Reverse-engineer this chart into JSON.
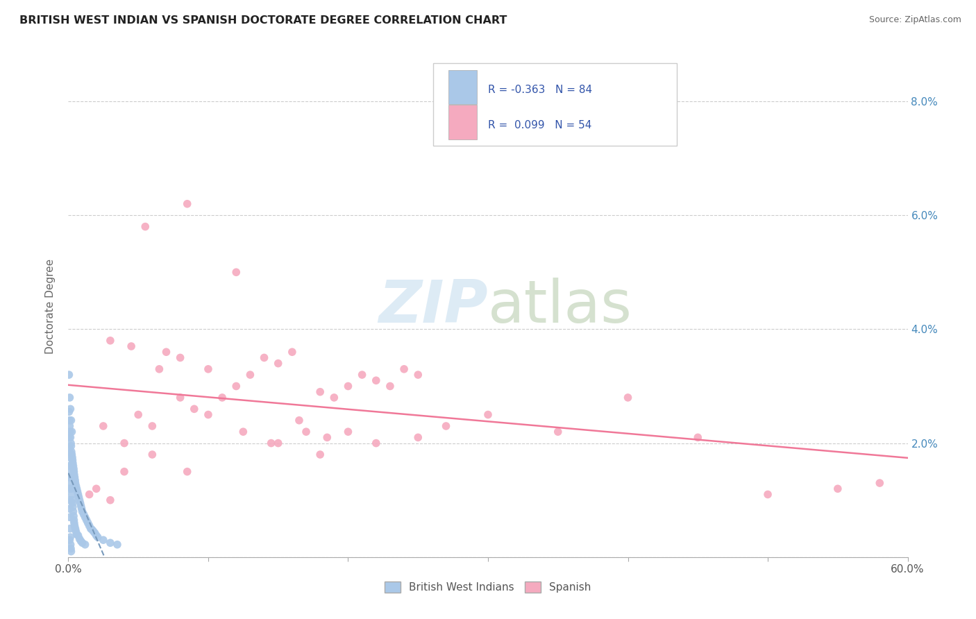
{
  "title": "BRITISH WEST INDIAN VS SPANISH DOCTORATE DEGREE CORRELATION CHART",
  "source": "Source: ZipAtlas.com",
  "ylabel": "Doctorate Degree",
  "xlim": [
    0.0,
    60.0
  ],
  "ylim": [
    0.0,
    8.8
  ],
  "yticks": [
    0.0,
    2.0,
    4.0,
    6.0,
    8.0
  ],
  "ytick_labels": [
    "",
    "2.0%",
    "4.0%",
    "6.0%",
    "8.0%"
  ],
  "legend_blue_r": "R = -0.363",
  "legend_blue_n": "N = 84",
  "legend_pink_r": "R =  0.099",
  "legend_pink_n": "N = 54",
  "blue_color": "#aac8e8",
  "pink_color": "#f5aabf",
  "blue_line_color": "#7799bb",
  "pink_line_color": "#f07898",
  "legend_text_color": "#3355aa",
  "ytick_color": "#4488bb",
  "watermark_color": "#d8e8f4",
  "blue_dots": [
    [
      0.05,
      2.55
    ],
    [
      0.08,
      2.4
    ],
    [
      0.1,
      2.3
    ],
    [
      0.12,
      2.2
    ],
    [
      0.15,
      2.1
    ],
    [
      0.18,
      2.0
    ],
    [
      0.2,
      1.95
    ],
    [
      0.22,
      1.85
    ],
    [
      0.25,
      1.8
    ],
    [
      0.28,
      1.75
    ],
    [
      0.3,
      1.7
    ],
    [
      0.32,
      1.65
    ],
    [
      0.35,
      1.6
    ],
    [
      0.38,
      1.55
    ],
    [
      0.4,
      1.5
    ],
    [
      0.42,
      1.45
    ],
    [
      0.45,
      1.4
    ],
    [
      0.48,
      1.35
    ],
    [
      0.5,
      1.3
    ],
    [
      0.55,
      1.25
    ],
    [
      0.6,
      1.2
    ],
    [
      0.65,
      1.15
    ],
    [
      0.7,
      1.1
    ],
    [
      0.75,
      1.05
    ],
    [
      0.8,
      1.0
    ],
    [
      0.85,
      0.95
    ],
    [
      0.9,
      0.9
    ],
    [
      0.95,
      0.85
    ],
    [
      1.0,
      0.8
    ],
    [
      1.1,
      0.75
    ],
    [
      1.2,
      0.7
    ],
    [
      1.3,
      0.65
    ],
    [
      1.4,
      0.6
    ],
    [
      1.5,
      0.55
    ],
    [
      1.6,
      0.5
    ],
    [
      1.7,
      0.48
    ],
    [
      1.8,
      0.45
    ],
    [
      1.9,
      0.42
    ],
    [
      2.0,
      0.38
    ],
    [
      2.1,
      0.35
    ],
    [
      0.05,
      2.1
    ],
    [
      0.08,
      1.9
    ],
    [
      0.1,
      1.75
    ],
    [
      0.12,
      1.6
    ],
    [
      0.15,
      1.5
    ],
    [
      0.18,
      1.4
    ],
    [
      0.2,
      1.3
    ],
    [
      0.22,
      1.2
    ],
    [
      0.25,
      1.1
    ],
    [
      0.28,
      1.0
    ],
    [
      0.3,
      0.95
    ],
    [
      0.32,
      0.88
    ],
    [
      0.35,
      0.8
    ],
    [
      0.38,
      0.72
    ],
    [
      0.4,
      0.65
    ],
    [
      0.42,
      0.6
    ],
    [
      0.45,
      0.55
    ],
    [
      0.5,
      0.5
    ],
    [
      0.55,
      0.45
    ],
    [
      0.6,
      0.4
    ],
    [
      0.7,
      0.38
    ],
    [
      0.8,
      0.32
    ],
    [
      0.9,
      0.28
    ],
    [
      1.0,
      0.25
    ],
    [
      1.2,
      0.22
    ],
    [
      0.05,
      3.2
    ],
    [
      0.1,
      2.8
    ],
    [
      0.15,
      2.6
    ],
    [
      0.2,
      2.4
    ],
    [
      0.25,
      2.2
    ],
    [
      2.5,
      0.3
    ],
    [
      3.0,
      0.25
    ],
    [
      3.5,
      0.22
    ],
    [
      0.05,
      1.6
    ],
    [
      0.06,
      1.4
    ],
    [
      0.07,
      1.2
    ],
    [
      0.08,
      1.0
    ],
    [
      0.09,
      0.85
    ],
    [
      0.1,
      0.7
    ],
    [
      0.12,
      0.5
    ],
    [
      0.14,
      0.35
    ],
    [
      0.16,
      0.22
    ],
    [
      0.18,
      0.15
    ],
    [
      0.2,
      0.1
    ],
    [
      0.1,
      0.3
    ]
  ],
  "pink_dots": [
    [
      1.5,
      1.1
    ],
    [
      2.0,
      1.2
    ],
    [
      3.0,
      1.0
    ],
    [
      4.0,
      1.5
    ],
    [
      5.0,
      2.5
    ],
    [
      6.0,
      2.3
    ],
    [
      7.0,
      3.6
    ],
    [
      8.0,
      3.5
    ],
    [
      9.0,
      2.6
    ],
    [
      10.0,
      3.3
    ],
    [
      11.0,
      2.8
    ],
    [
      12.0,
      3.0
    ],
    [
      13.0,
      3.2
    ],
    [
      14.0,
      3.5
    ],
    [
      15.0,
      3.4
    ],
    [
      16.0,
      3.6
    ],
    [
      17.0,
      2.2
    ],
    [
      18.0,
      2.9
    ],
    [
      19.0,
      2.8
    ],
    [
      20.0,
      3.0
    ],
    [
      21.0,
      3.2
    ],
    [
      22.0,
      3.1
    ],
    [
      23.0,
      3.0
    ],
    [
      24.0,
      3.3
    ],
    [
      25.0,
      3.2
    ],
    [
      5.5,
      5.8
    ],
    [
      8.5,
      6.2
    ],
    [
      12.0,
      5.0
    ],
    [
      15.0,
      2.0
    ],
    [
      18.0,
      1.8
    ],
    [
      20.0,
      2.2
    ],
    [
      22.0,
      2.0
    ],
    [
      25.0,
      2.1
    ],
    [
      27.0,
      2.3
    ],
    [
      30.0,
      2.5
    ],
    [
      35.0,
      2.2
    ],
    [
      40.0,
      2.8
    ],
    [
      45.0,
      2.1
    ],
    [
      50.0,
      1.1
    ],
    [
      55.0,
      1.2
    ],
    [
      58.0,
      1.3
    ],
    [
      3.0,
      3.8
    ],
    [
      4.5,
      3.7
    ],
    [
      6.5,
      3.3
    ],
    [
      8.0,
      2.8
    ],
    [
      10.0,
      2.5
    ],
    [
      12.5,
      2.2
    ],
    [
      14.5,
      2.0
    ],
    [
      16.5,
      2.4
    ],
    [
      18.5,
      2.1
    ],
    [
      2.5,
      2.3
    ],
    [
      4.0,
      2.0
    ],
    [
      6.0,
      1.8
    ],
    [
      8.5,
      1.5
    ]
  ]
}
